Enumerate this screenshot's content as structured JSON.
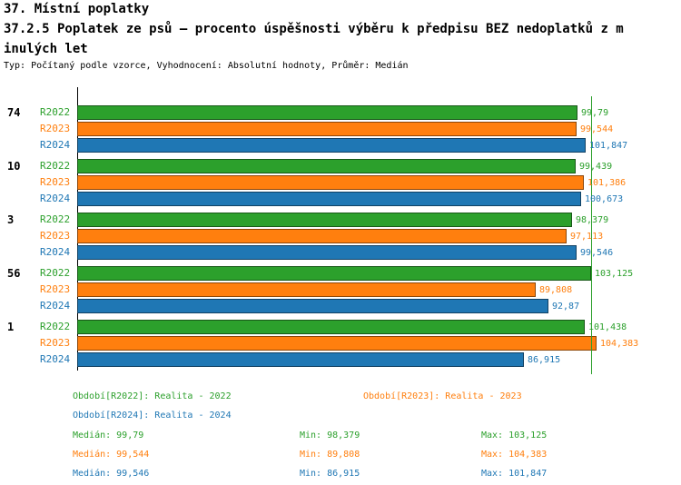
{
  "header": {
    "title_line1": "37. Místní poplatky",
    "title_line2": "37.2.5 Poplatek ze psů – procento úspěšnosti výběru k předpisu BEZ nedoplatků z m",
    "title_line3": "inulých let",
    "subtitle": "Typ: Počítaný podle vzorce, Vyhodnocení: Absolutní hodnoty, Průměr: Medián"
  },
  "chart_data": {
    "type": "bar",
    "orientation": "horizontal",
    "title": "37.2.5 Poplatek ze psů – procento úspěšnosti výběru k předpisu BEZ nedoplatků z minulých let",
    "groups": [
      "74",
      "10",
      "3",
      "56",
      "1"
    ],
    "series": [
      {
        "name": "R2022",
        "color": "#2ca02c",
        "values": [
          99.79,
          99.439,
          98.379,
          103.125,
          101.438
        ],
        "value_labels": [
          "99,79",
          "99,439",
          "98,379",
          "103,125",
          "101,438"
        ]
      },
      {
        "name": "R2023",
        "color": "#ff7f0e",
        "values": [
          99.544,
          101.386,
          97.113,
          89.808,
          104.383
        ],
        "value_labels": [
          "99,544",
          "101,386",
          "97,113",
          "89,808",
          "104,383"
        ]
      },
      {
        "name": "R2024",
        "color": "#1f77b4",
        "values": [
          101.847,
          100.673,
          99.546,
          92.87,
          86.915
        ],
        "value_labels": [
          "101,847",
          "100,673",
          "99,546",
          "92,87",
          "86,915"
        ]
      }
    ],
    "reference_line_value": 103.125,
    "reference_line_color": "#2ca02c",
    "x_axis_ticks_visible": false,
    "legend_position": "bottom"
  },
  "legend": {
    "items": [
      {
        "label": "Období[R2022]: Realita - 2022",
        "series": "R2022"
      },
      {
        "label": "Období[R2023]: Realita - 2023",
        "series": "R2023"
      },
      {
        "label": "Období[R2024]: Realita - 2024",
        "series": "R2024"
      }
    ]
  },
  "stats": {
    "rows": [
      {
        "series": "R2022",
        "median": "Medián: 99,79",
        "min": "Min: 98,379",
        "max": "Max: 103,125"
      },
      {
        "series": "R2023",
        "median": "Medián: 99,544",
        "min": "Min: 89,808",
        "max": "Max: 104,383"
      },
      {
        "series": "R2024",
        "median": "Medián: 99,546",
        "min": "Min: 86,915",
        "max": "Max: 101,847"
      }
    ]
  }
}
